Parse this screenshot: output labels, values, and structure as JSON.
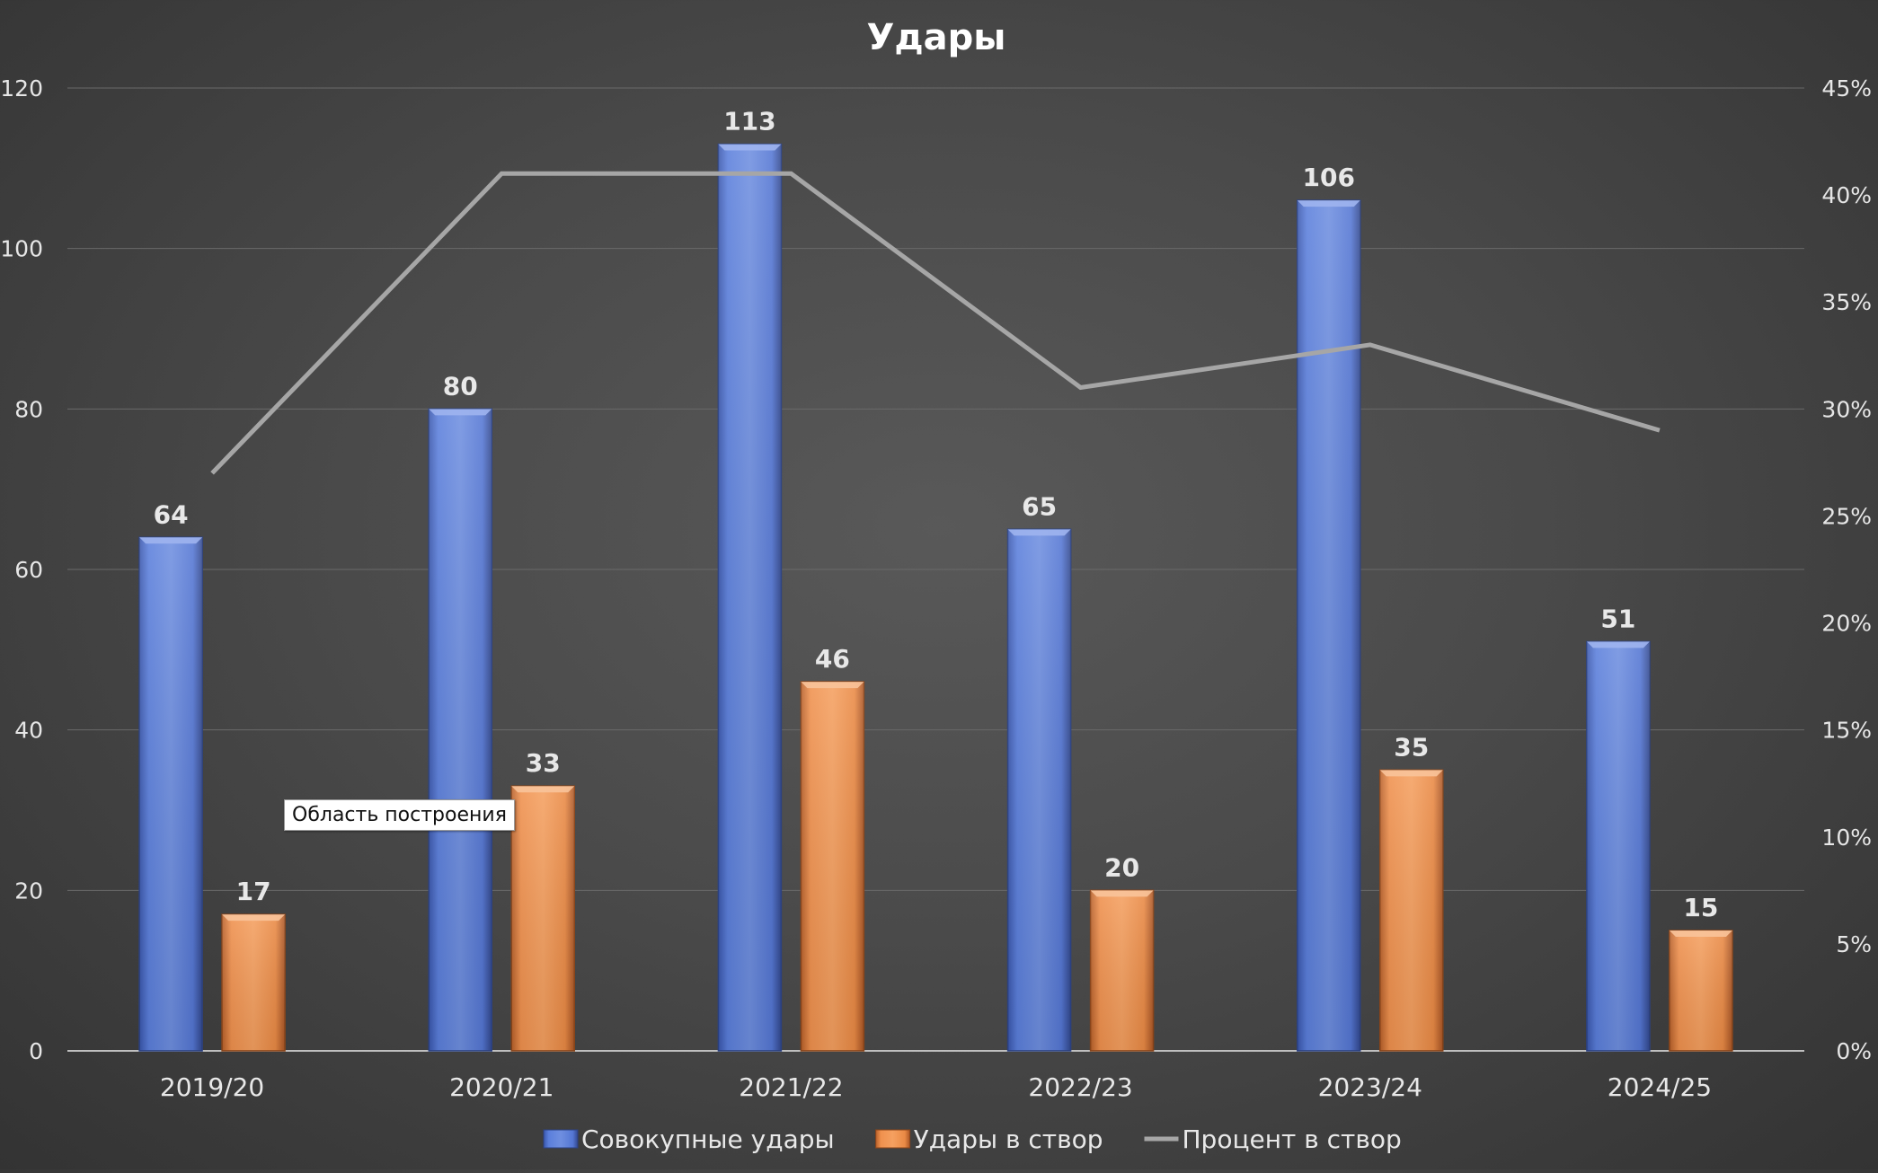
{
  "chart_data": {
    "type": "bar",
    "title": "Удары",
    "categories": [
      "2019/20",
      "2020/21",
      "2021/22",
      "2022/23",
      "2023/24",
      "2024/25"
    ],
    "series": [
      {
        "name": "Совокупные удары",
        "type": "bar",
        "axis": "left",
        "values": [
          64,
          80,
          113,
          65,
          106,
          51
        ],
        "color": "#4a6fd1"
      },
      {
        "name": "Удары в створ",
        "type": "bar",
        "axis": "left",
        "values": [
          17,
          33,
          46,
          20,
          35,
          15
        ],
        "color": "#ed8a45"
      },
      {
        "name": "Процент в створ",
        "type": "line",
        "axis": "right",
        "values": [
          0.27,
          0.41,
          0.41,
          0.31,
          0.33,
          0.29
        ],
        "color": "#a6a6a6"
      }
    ],
    "ylim": [
      0,
      120
    ],
    "yticks": [
      0,
      20,
      40,
      60,
      80,
      100,
      120
    ],
    "y2lim": [
      0,
      0.45
    ],
    "y2ticks": [
      "0%",
      "5%",
      "10%",
      "15%",
      "20%",
      "25%",
      "30%",
      "35%",
      "40%",
      "45%"
    ],
    "grid": true,
    "legend": "bottom",
    "data_labels": true
  },
  "tooltip": {
    "text": "Область построения"
  }
}
